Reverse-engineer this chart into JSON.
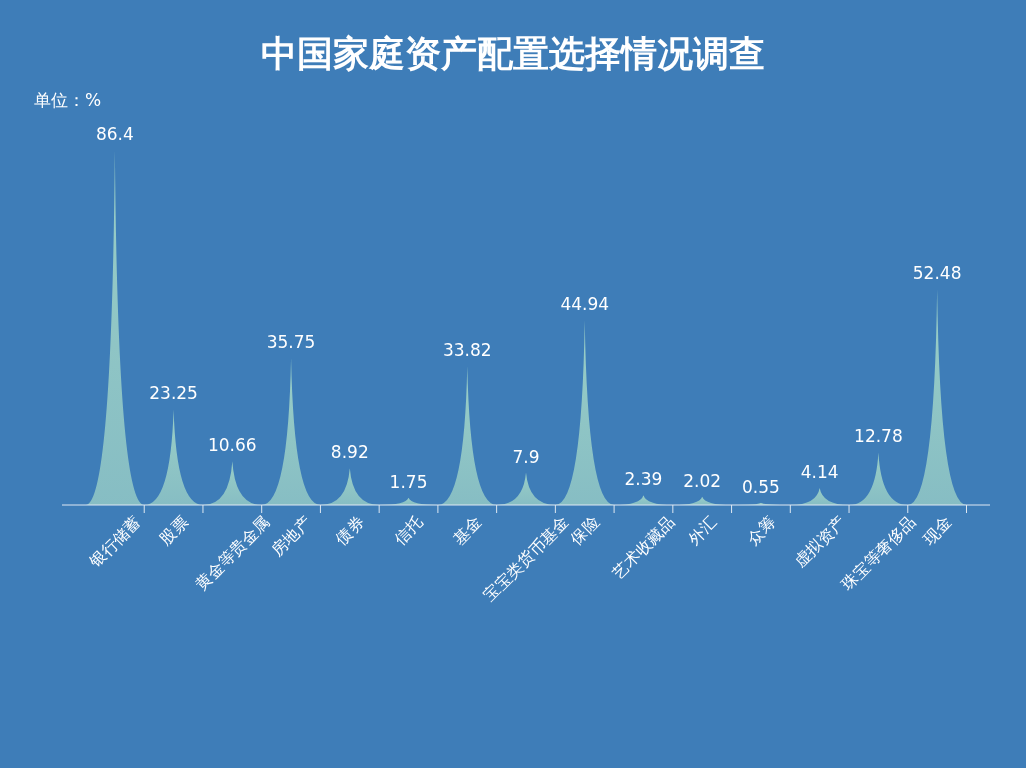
{
  "chart_data": {
    "type": "bar",
    "title": "中国家庭资产配置选择情况调查",
    "categories": [
      "银行储蓄",
      "股票",
      "黄金等贵金属",
      "房地产",
      "债券",
      "信托",
      "基金",
      "宝宝类货币基金",
      "保险",
      "艺术收藏品",
      "外汇",
      "众筹",
      "虚拟资产",
      "珠宝等奢侈品",
      "现金"
    ],
    "values": [
      86.4,
      23.25,
      10.66,
      35.75,
      8.92,
      1.75,
      33.82,
      7.9,
      44.94,
      2.39,
      2.02,
      0.55,
      4.14,
      12.78,
      52.48
    ],
    "color": "#a9dcc9",
    "data_labels": true,
    "annotations": [
      "单位：%"
    ]
  }
}
